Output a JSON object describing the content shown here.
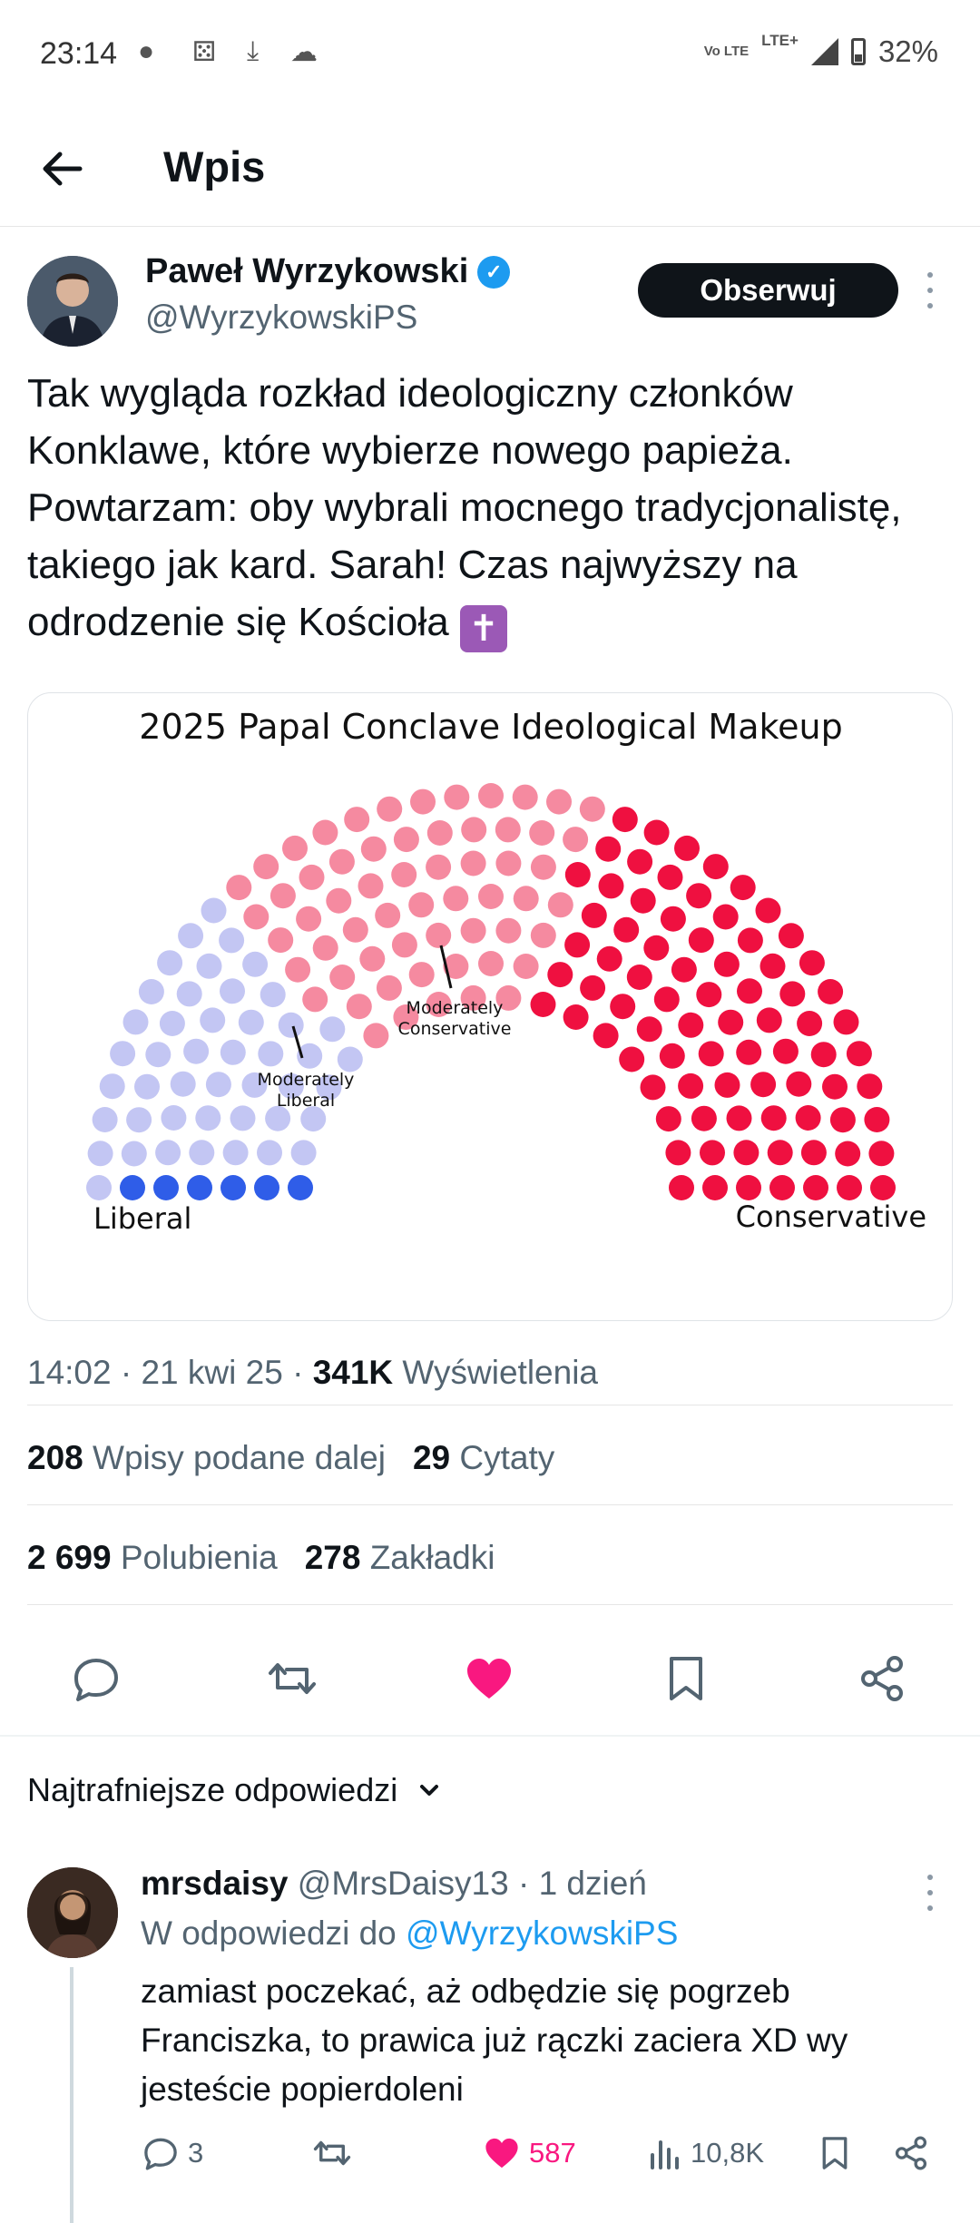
{
  "status_bar": {
    "time": "23:14",
    "volte": "Vo LTE",
    "lte": "LTE+",
    "battery": "32%"
  },
  "header": {
    "title": "Wpis"
  },
  "post": {
    "author_name": "Paweł Wyrzykowski",
    "author_handle": "@WyrzykowskiPS",
    "follow_label": "Obserwuj",
    "text": "Tak wygląda rozkład ideologiczny członków Konklawe, które wybierze nowego papieża. Powtarzam: oby wybrali mocnego tradycjonalistę, takiego jak kard. Sarah! Czas najwyższy na odrodzenie się Kościoła",
    "emoji": "✝",
    "time": "14:02",
    "date": "21 kwi 25",
    "views_count": "341K",
    "views_label": "Wyświetlenia",
    "reposts_count": "208",
    "reposts_label": "Wpisy podane dalej",
    "quotes_count": "29",
    "quotes_label": "Cytaty",
    "likes_count": "2 699",
    "likes_label": "Polubienia",
    "bookmarks_count": "278",
    "bookmarks_label": "Zakładki"
  },
  "image": {
    "title": "2025 Papal Conclave Ideological Makeup",
    "label_liberal": "Liberal",
    "label_mod_liberal_1": "Moderately",
    "label_mod_liberal_2": "Liberal",
    "label_mod_cons_1": "Moderately",
    "label_mod_cons_2": "Conservative",
    "label_conservative": "Conservative",
    "colors": {
      "liberal": "#2f5de8",
      "moderately_liberal": "#c3c6f3",
      "moderately_conservative": "#f58aa0",
      "conservative": "#ef1040"
    }
  },
  "chart_data": {
    "type": "parliament",
    "title": "2025 Papal Conclave Ideological Makeup",
    "categories": [
      "Liberal",
      "Moderately Liberal",
      "Moderately Conservative",
      "Conservative"
    ],
    "values": [
      6,
      45,
      60,
      80
    ]
  },
  "replies": {
    "sort_label": "Najtrafniejsze odpowiedzi",
    "items": [
      {
        "name": "mrsdaisy",
        "handle": "@MrsDaisy13",
        "time": "1 dzień",
        "reply_to_prefix": "W odpowiedzi do",
        "reply_to_handle": "@WyrzykowskiPS",
        "text": "zamiast poczekać, aż odbędzie się pogrzeb Franciszka, to prawica już rączki zaciera XD wy jesteście popierdoleni",
        "replies": "3",
        "likes": "587",
        "views": "10,8K"
      }
    ]
  }
}
